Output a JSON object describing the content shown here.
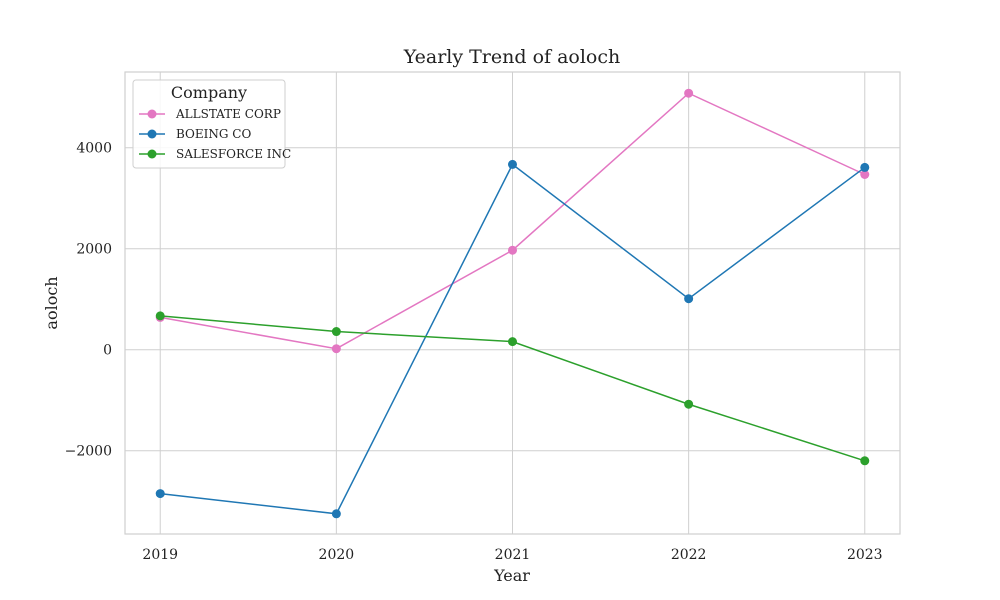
{
  "chart_data": {
    "type": "line",
    "title": "Yearly Trend of aoloch",
    "xlabel": "Year",
    "ylabel": "aoloch",
    "x": [
      2019,
      2020,
      2021,
      2022,
      2023
    ],
    "x_tick_labels": [
      "2019",
      "2020",
      "2021",
      "2022",
      "2023"
    ],
    "y_ticks": [
      -2000,
      0,
      2000,
      4000
    ],
    "y_tick_labels": [
      "−2000",
      "0",
      "2000",
      "4000"
    ],
    "ylim": [
      -3650,
      5500
    ],
    "xlim": [
      2018.8,
      2023.2
    ],
    "grid": true,
    "legend": {
      "title": "Company",
      "placement": "top-left"
    },
    "series": [
      {
        "name": "ALLSTATE CORP",
        "color": "#e377c2",
        "values": [
          640,
          20,
          1970,
          5080,
          3470
        ]
      },
      {
        "name": "BOEING CO",
        "color": "#1f77b4",
        "values": [
          -2850,
          -3250,
          3670,
          1010,
          3610
        ]
      },
      {
        "name": "SALESFORCE INC",
        "color": "#2ca02c",
        "values": [
          670,
          360,
          160,
          -1080,
          -2200
        ]
      }
    ]
  }
}
